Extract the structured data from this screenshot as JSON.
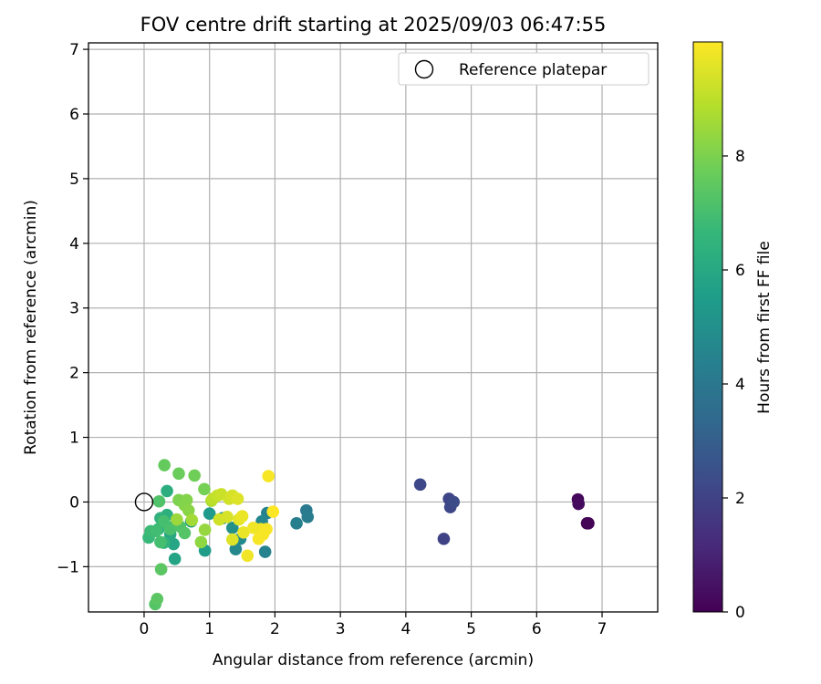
{
  "chart_data": {
    "type": "scatter",
    "title": "FOV centre drift starting at 2025/09/03 06:47:55",
    "xlabel": "Angular distance from reference (arcmin)",
    "ylabel": "Rotation from reference (arcmin)",
    "xlim": [
      -0.85,
      7.85
    ],
    "ylim": [
      -1.7,
      7.1
    ],
    "xticks": [
      0,
      1,
      2,
      3,
      4,
      5,
      6,
      7
    ],
    "yticks": [
      -1,
      0,
      1,
      2,
      3,
      4,
      5,
      6,
      7
    ],
    "grid": true,
    "legend": {
      "placement": "upper-right",
      "entries": [
        "Reference platepar"
      ]
    },
    "reference_point": {
      "label": "Reference platepar",
      "x": 0,
      "y": 0
    },
    "colorbar": {
      "label": "Hours from first FF file",
      "range": [
        0,
        10
      ],
      "ticks": [
        0,
        2,
        4,
        6,
        8
      ],
      "colormap": "viridis"
    },
    "points": [
      {
        "x": 6.77,
        "y": -0.33,
        "c": 0.0
      },
      {
        "x": 6.79,
        "y": -0.33,
        "c": 0.1
      },
      {
        "x": 6.63,
        "y": 0.04,
        "c": 0.2
      },
      {
        "x": 6.64,
        "y": -0.03,
        "c": 0.3
      },
      {
        "x": 4.22,
        "y": 0.27,
        "c": 2.2
      },
      {
        "x": 4.58,
        "y": -0.57,
        "c": 2.0
      },
      {
        "x": 4.66,
        "y": 0.05,
        "c": 2.1
      },
      {
        "x": 4.68,
        "y": -0.08,
        "c": 2.2
      },
      {
        "x": 4.73,
        "y": 0.0,
        "c": 2.3
      },
      {
        "x": 2.48,
        "y": -0.13,
        "c": 4.1
      },
      {
        "x": 2.5,
        "y": -0.23,
        "c": 4.2
      },
      {
        "x": 2.33,
        "y": -0.33,
        "c": 4.3
      },
      {
        "x": 1.88,
        "y": -0.17,
        "c": 4.4
      },
      {
        "x": 1.85,
        "y": -0.77,
        "c": 4.5
      },
      {
        "x": 1.8,
        "y": -0.3,
        "c": 4.6
      },
      {
        "x": 1.4,
        "y": -0.73,
        "c": 4.7
      },
      {
        "x": 1.47,
        "y": -0.57,
        "c": 4.8
      },
      {
        "x": 1.35,
        "y": -0.4,
        "c": 5.0
      },
      {
        "x": 1.2,
        "y": -0.25,
        "c": 5.2
      },
      {
        "x": 1.0,
        "y": -0.18,
        "c": 5.4
      },
      {
        "x": 0.93,
        "y": -0.75,
        "c": 5.5
      },
      {
        "x": 0.72,
        "y": -0.3,
        "c": 5.6
      },
      {
        "x": 0.47,
        "y": -0.88,
        "c": 5.8
      },
      {
        "x": 0.45,
        "y": -0.65,
        "c": 5.9
      },
      {
        "x": 0.4,
        "y": -0.5,
        "c": 6.0
      },
      {
        "x": 0.48,
        "y": -0.35,
        "c": 6.1
      },
      {
        "x": 0.35,
        "y": 0.17,
        "c": 6.2
      },
      {
        "x": 0.35,
        "y": -0.2,
        "c": 6.3
      },
      {
        "x": 0.25,
        "y": -0.25,
        "c": 6.4
      },
      {
        "x": 0.3,
        "y": -0.63,
        "c": 6.5
      },
      {
        "x": 0.22,
        "y": -0.42,
        "c": 6.6
      },
      {
        "x": 0.07,
        "y": -0.55,
        "c": 6.7
      },
      {
        "x": 0.1,
        "y": -0.45,
        "c": 6.8
      },
      {
        "x": 0.18,
        "y": -0.45,
        "c": 6.9
      },
      {
        "x": 0.25,
        "y": -0.62,
        "c": 7.0
      },
      {
        "x": 0.3,
        "y": -0.3,
        "c": 7.0
      },
      {
        "x": 0.4,
        "y": -0.42,
        "c": 7.1
      },
      {
        "x": 0.55,
        "y": -0.38,
        "c": 7.2
      },
      {
        "x": 0.62,
        "y": -0.48,
        "c": 7.3
      },
      {
        "x": 0.23,
        "y": 0.01,
        "c": 7.2
      },
      {
        "x": 0.17,
        "y": -1.58,
        "c": 7.3
      },
      {
        "x": 0.2,
        "y": -1.5,
        "c": 7.4
      },
      {
        "x": 0.26,
        "y": -1.04,
        "c": 7.4
      },
      {
        "x": 0.31,
        "y": 0.57,
        "c": 7.6
      },
      {
        "x": 0.53,
        "y": 0.44,
        "c": 7.7
      },
      {
        "x": 0.77,
        "y": 0.41,
        "c": 7.8
      },
      {
        "x": 0.92,
        "y": 0.2,
        "c": 7.9
      },
      {
        "x": 0.53,
        "y": 0.03,
        "c": 8.0
      },
      {
        "x": 0.65,
        "y": 0.03,
        "c": 8.1
      },
      {
        "x": 0.62,
        "y": -0.05,
        "c": 8.1
      },
      {
        "x": 0.68,
        "y": -0.13,
        "c": 8.2
      },
      {
        "x": 0.87,
        "y": -0.62,
        "c": 8.3
      },
      {
        "x": 0.93,
        "y": -0.43,
        "c": 8.4
      },
      {
        "x": 0.5,
        "y": -0.27,
        "c": 8.5
      },
      {
        "x": 0.73,
        "y": -0.28,
        "c": 8.6
      },
      {
        "x": 1.03,
        "y": 0.02,
        "c": 8.8
      },
      {
        "x": 1.05,
        "y": 0.05,
        "c": 9.0
      },
      {
        "x": 1.12,
        "y": 0.1,
        "c": 9.1
      },
      {
        "x": 1.18,
        "y": 0.12,
        "c": 9.2
      },
      {
        "x": 1.3,
        "y": 0.05,
        "c": 9.3
      },
      {
        "x": 1.35,
        "y": 0.1,
        "c": 9.4
      },
      {
        "x": 1.43,
        "y": 0.05,
        "c": 9.5
      },
      {
        "x": 1.15,
        "y": -0.27,
        "c": 9.3
      },
      {
        "x": 1.27,
        "y": -0.23,
        "c": 9.4
      },
      {
        "x": 1.35,
        "y": -0.58,
        "c": 9.5
      },
      {
        "x": 1.45,
        "y": -0.27,
        "c": 9.6
      },
      {
        "x": 1.5,
        "y": -0.22,
        "c": 9.7
      },
      {
        "x": 1.52,
        "y": -0.47,
        "c": 9.7
      },
      {
        "x": 1.58,
        "y": -0.83,
        "c": 9.8
      },
      {
        "x": 1.67,
        "y": -0.4,
        "c": 9.8
      },
      {
        "x": 1.78,
        "y": -0.42,
        "c": 9.8
      },
      {
        "x": 1.75,
        "y": -0.57,
        "c": 9.9
      },
      {
        "x": 1.82,
        "y": -0.5,
        "c": 9.9
      },
      {
        "x": 1.87,
        "y": -0.42,
        "c": 9.9
      },
      {
        "x": 1.9,
        "y": 0.4,
        "c": 9.9
      },
      {
        "x": 1.97,
        "y": -0.15,
        "c": 10.0
      }
    ]
  }
}
